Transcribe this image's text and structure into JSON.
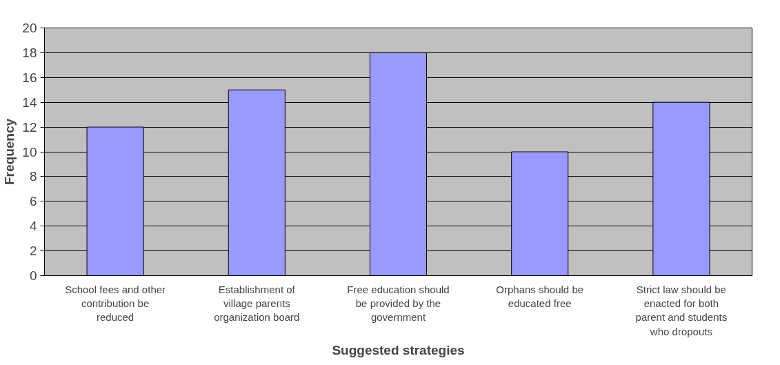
{
  "chart_data": {
    "type": "bar",
    "xlabel": "Suggested strategies",
    "ylabel": "Frequency",
    "categories": [
      "School fees and other contribution be reduced",
      "Establishment of village parents organization board",
      "Free education should be provided by the government",
      "Orphans should be educated free",
      "Strict law should be enacted for both parent and students who dropouts"
    ],
    "values": [
      12,
      15,
      18,
      10,
      14
    ],
    "color": "#9999ff",
    "ylim": [
      0,
      20
    ],
    "yticks": [
      0,
      2,
      4,
      6,
      8,
      10,
      12,
      14,
      16,
      18,
      20
    ],
    "grid": "y"
  }
}
